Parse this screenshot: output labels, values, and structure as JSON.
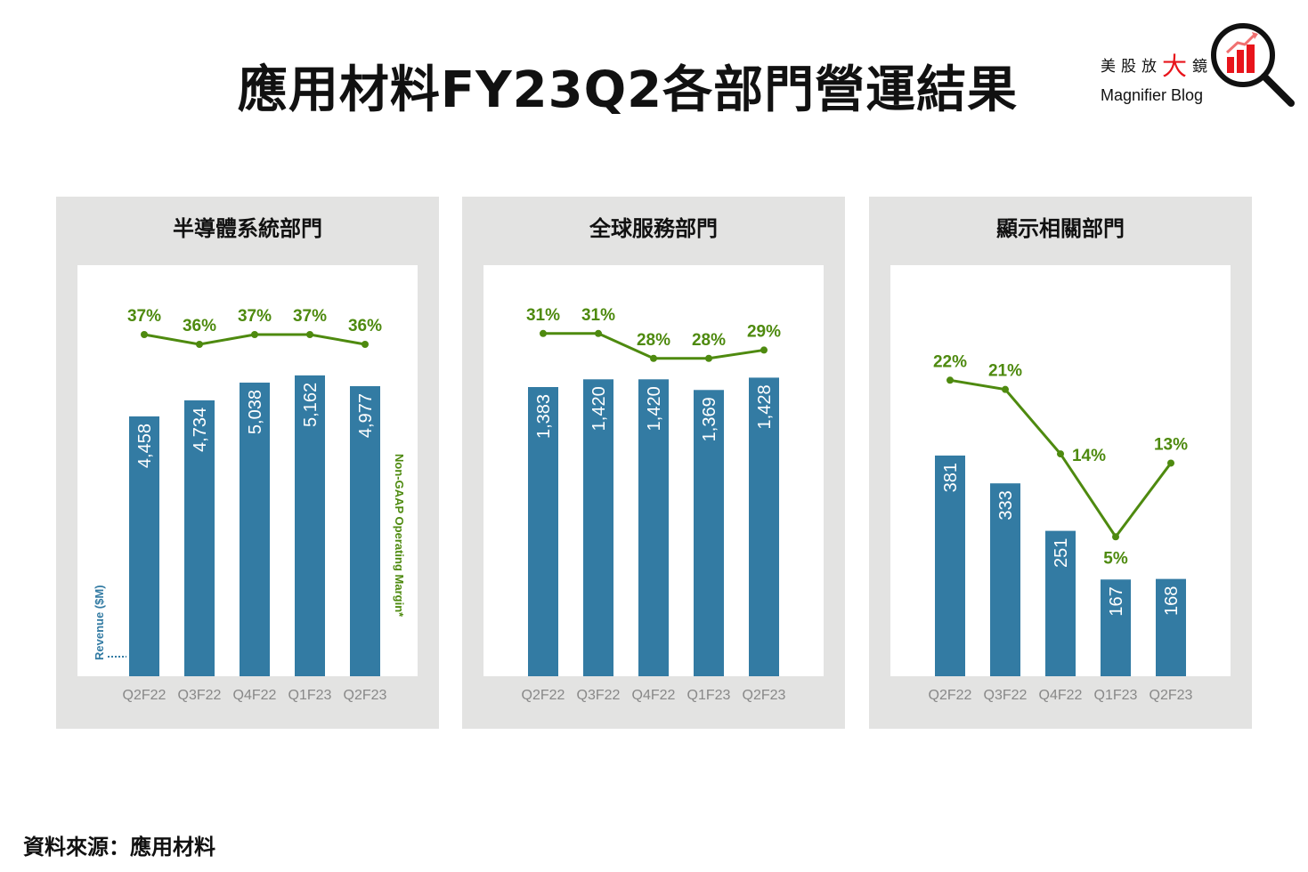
{
  "title": "應用材料FY23Q2各部門營運結果",
  "logo": {
    "cn_parts": [
      "美股放",
      "大",
      "鏡"
    ],
    "en": "Magnifier Blog"
  },
  "source": "資料來源：應用材料",
  "colors": {
    "bar": "#337ba3",
    "line": "#4e8a0f",
    "panel": "#e3e3e2"
  },
  "chart_data": [
    {
      "type": "bar+line",
      "title": "半導體系統部門",
      "categories": [
        "Q2F22",
        "Q3F22",
        "Q4F22",
        "Q1F23",
        "Q2F23"
      ],
      "series": [
        {
          "name": "Revenue ($M)",
          "type": "bar",
          "values": [
            4458,
            4734,
            5038,
            5162,
            4977
          ],
          "labels": [
            "4,458",
            "4,734",
            "5,038",
            "5,162",
            "4,977"
          ]
        },
        {
          "name": "Non-GAAP Operating Margin*",
          "type": "line",
          "values": [
            37,
            36,
            37,
            37,
            36
          ],
          "labels": [
            "37%",
            "36%",
            "37%",
            "37%",
            "36%"
          ]
        }
      ],
      "ylabel": "Revenue ($M)",
      "y2label": "Non-GAAP Operating Margin*"
    },
    {
      "type": "bar+line",
      "title": "全球服務部門",
      "categories": [
        "Q2F22",
        "Q3F22",
        "Q4F22",
        "Q1F23",
        "Q2F23"
      ],
      "series": [
        {
          "type": "bar",
          "values": [
            1383,
            1420,
            1420,
            1369,
            1428
          ],
          "labels": [
            "1,383",
            "1,420",
            "1,420",
            "1,369",
            "1,428"
          ]
        },
        {
          "type": "line",
          "values": [
            31,
            31,
            28,
            28,
            29
          ],
          "labels": [
            "31%",
            "31%",
            "28%",
            "28%",
            "29%"
          ]
        }
      ]
    },
    {
      "type": "bar+line",
      "title": "顯示相關部門",
      "categories": [
        "Q2F22",
        "Q3F22",
        "Q4F22",
        "Q1F23",
        "Q2F23"
      ],
      "series": [
        {
          "type": "bar",
          "values": [
            381,
            333,
            251,
            167,
            168
          ],
          "labels": [
            "381",
            "333",
            "251",
            "167",
            "168"
          ]
        },
        {
          "type": "line",
          "values": [
            22,
            21,
            14,
            5,
            13
          ],
          "labels": [
            "22%",
            "21%",
            "14%",
            "5%",
            "13%"
          ]
        }
      ]
    }
  ]
}
